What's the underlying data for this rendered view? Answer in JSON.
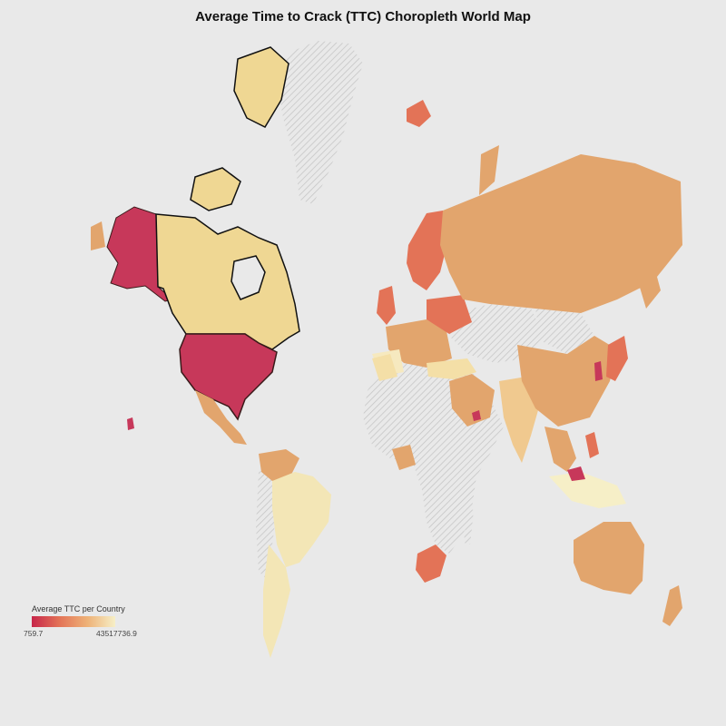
{
  "title": "Average Time to Crack (TTC) Choropleth World Map",
  "legend": {
    "title": "Average TTC per Country",
    "min_label": "759.7",
    "max_label": "43517736.9"
  },
  "colors": {
    "background": "#e9e9e9",
    "no_data_hatch": "#c9c9c9",
    "low": "#c7264a",
    "mid_low": "#e37357",
    "mid": "#e2a56d",
    "high": "#efd793",
    "max": "#f6efc7"
  },
  "chart_data": {
    "type": "choropleth",
    "metric": "Average TTC per Country",
    "range": [
      759.7,
      43517736.9
    ],
    "color_scale": [
      "#c7264a",
      "#e37357",
      "#eeb277",
      "#f6efc7"
    ],
    "no_data_style": "hatched",
    "highlighted_countries": [
      "United States",
      "Canada"
    ]
  }
}
